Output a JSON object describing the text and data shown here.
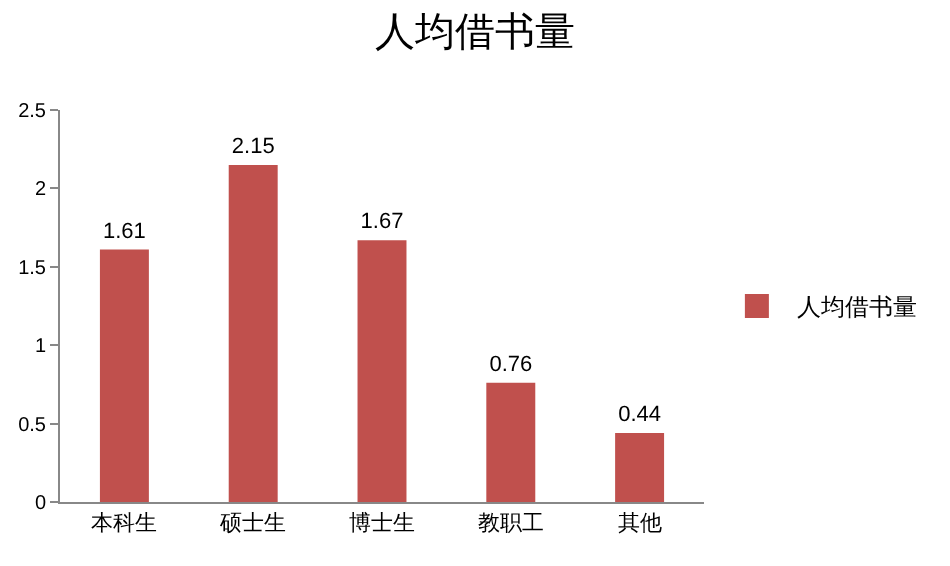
{
  "chart_data": {
    "type": "bar",
    "title": "人均借书量",
    "categories": [
      "本科生",
      "硕士生",
      "博士生",
      "教职工",
      "其他"
    ],
    "series": [
      {
        "name": "人均借书量",
        "color": "#c0504d",
        "values": [
          1.61,
          2.15,
          1.67,
          0.76,
          0.44
        ]
      }
    ],
    "ylim": [
      0,
      2.5
    ],
    "yticks": [
      0,
      0.5,
      1,
      1.5,
      2,
      2.5
    ],
    "grid": false,
    "legend": "right",
    "data_labels": true
  }
}
